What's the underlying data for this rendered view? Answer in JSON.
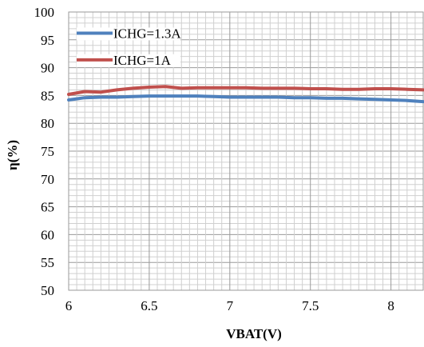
{
  "chart_data": {
    "type": "line",
    "title": "",
    "xlabel": "VBAT(V)",
    "ylabel": "η(%)",
    "xlim": [
      6,
      8.2
    ],
    "ylim": [
      50,
      100
    ],
    "x_ticks": [
      "6",
      "6.5",
      "7",
      "7.5",
      "8"
    ],
    "y_ticks": [
      "50",
      "55",
      "60",
      "65",
      "70",
      "75",
      "80",
      "85",
      "90",
      "95",
      "100"
    ],
    "grid": true,
    "legend_position": "top-left",
    "series": [
      {
        "name": "ICHG=1.3A",
        "color": "#4f81bd",
        "x": [
          6.0,
          6.1,
          6.2,
          6.3,
          6.4,
          6.5,
          6.6,
          6.7,
          6.8,
          6.9,
          7.0,
          7.1,
          7.2,
          7.3,
          7.4,
          7.5,
          7.6,
          7.7,
          7.8,
          7.9,
          8.0,
          8.1,
          8.2
        ],
        "y": [
          84.2,
          84.6,
          84.7,
          84.7,
          84.8,
          84.9,
          84.9,
          84.9,
          84.9,
          84.8,
          84.7,
          84.7,
          84.7,
          84.7,
          84.6,
          84.6,
          84.5,
          84.5,
          84.4,
          84.3,
          84.2,
          84.1,
          83.9
        ]
      },
      {
        "name": "ICHG=1A",
        "color": "#c0504d",
        "x": [
          6.0,
          6.1,
          6.2,
          6.3,
          6.4,
          6.5,
          6.6,
          6.7,
          6.8,
          6.9,
          7.0,
          7.1,
          7.2,
          7.3,
          7.4,
          7.5,
          7.6,
          7.7,
          7.8,
          7.9,
          8.0,
          8.1,
          8.2
        ],
        "y": [
          85.2,
          85.7,
          85.6,
          86.0,
          86.3,
          86.5,
          86.6,
          86.3,
          86.4,
          86.4,
          86.4,
          86.4,
          86.3,
          86.3,
          86.3,
          86.2,
          86.2,
          86.1,
          86.1,
          86.2,
          86.2,
          86.1,
          86.0
        ]
      }
    ]
  }
}
